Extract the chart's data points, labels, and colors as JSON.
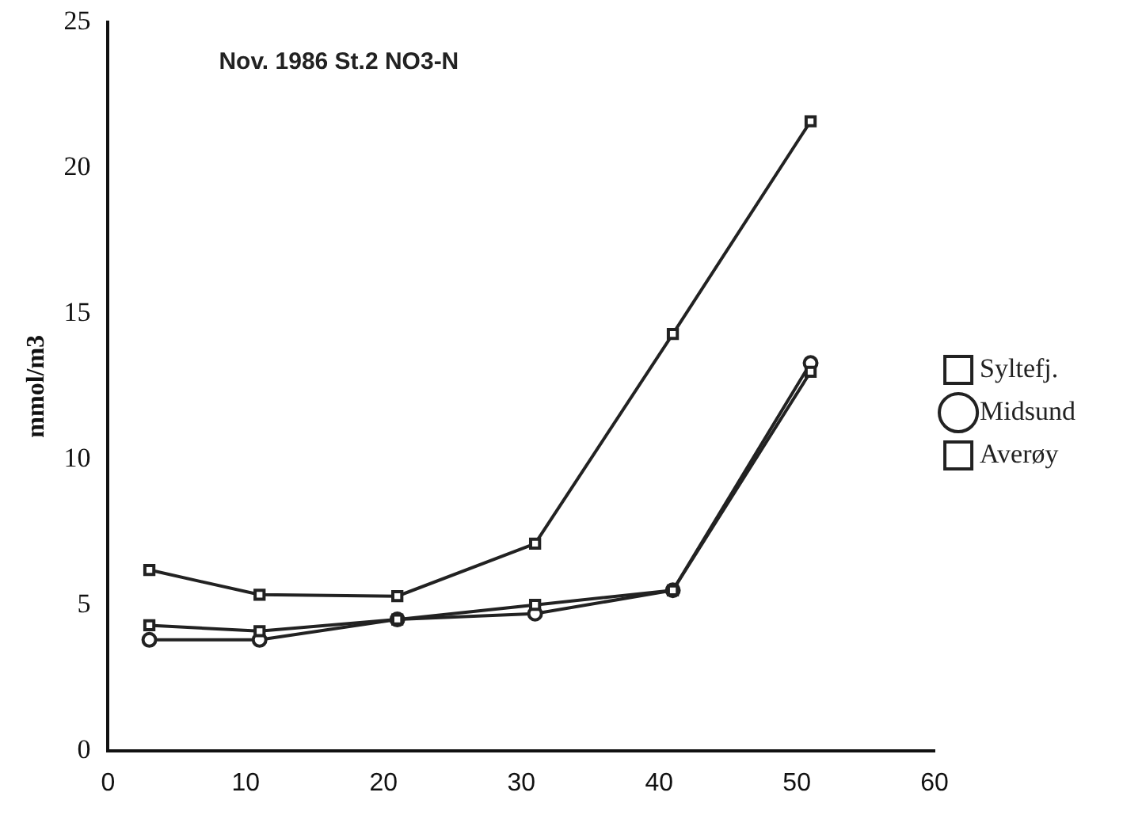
{
  "chart_data": {
    "type": "line",
    "title": "Nov. 1986 St.2 NO3-N",
    "ylabel": "mmol/m3",
    "x": [
      3,
      11,
      21,
      31,
      41,
      51
    ],
    "series": [
      {
        "name": "Syltefj.",
        "color": "#222222",
        "marker": "square",
        "values": [
          4.3,
          4.1,
          4.5,
          5.0,
          5.5,
          13.0
        ]
      },
      {
        "name": "Midsund",
        "color": "#222222",
        "marker": "circle",
        "values": [
          3.8,
          3.8,
          4.5,
          4.7,
          5.5,
          13.3
        ]
      },
      {
        "name": "Averøy",
        "color": "#222222",
        "marker": "square",
        "values": [
          6.2,
          5.35,
          5.3,
          7.1,
          14.3,
          21.6
        ]
      }
    ],
    "xlim": [
      0,
      60
    ],
    "xticks": [
      0,
      10,
      20,
      30,
      40,
      50,
      60
    ],
    "ylim": [
      0,
      25
    ],
    "yticks": [
      0,
      5,
      10,
      15,
      20,
      25
    ],
    "grid": false,
    "legend": "right",
    "line_style": "solid"
  }
}
